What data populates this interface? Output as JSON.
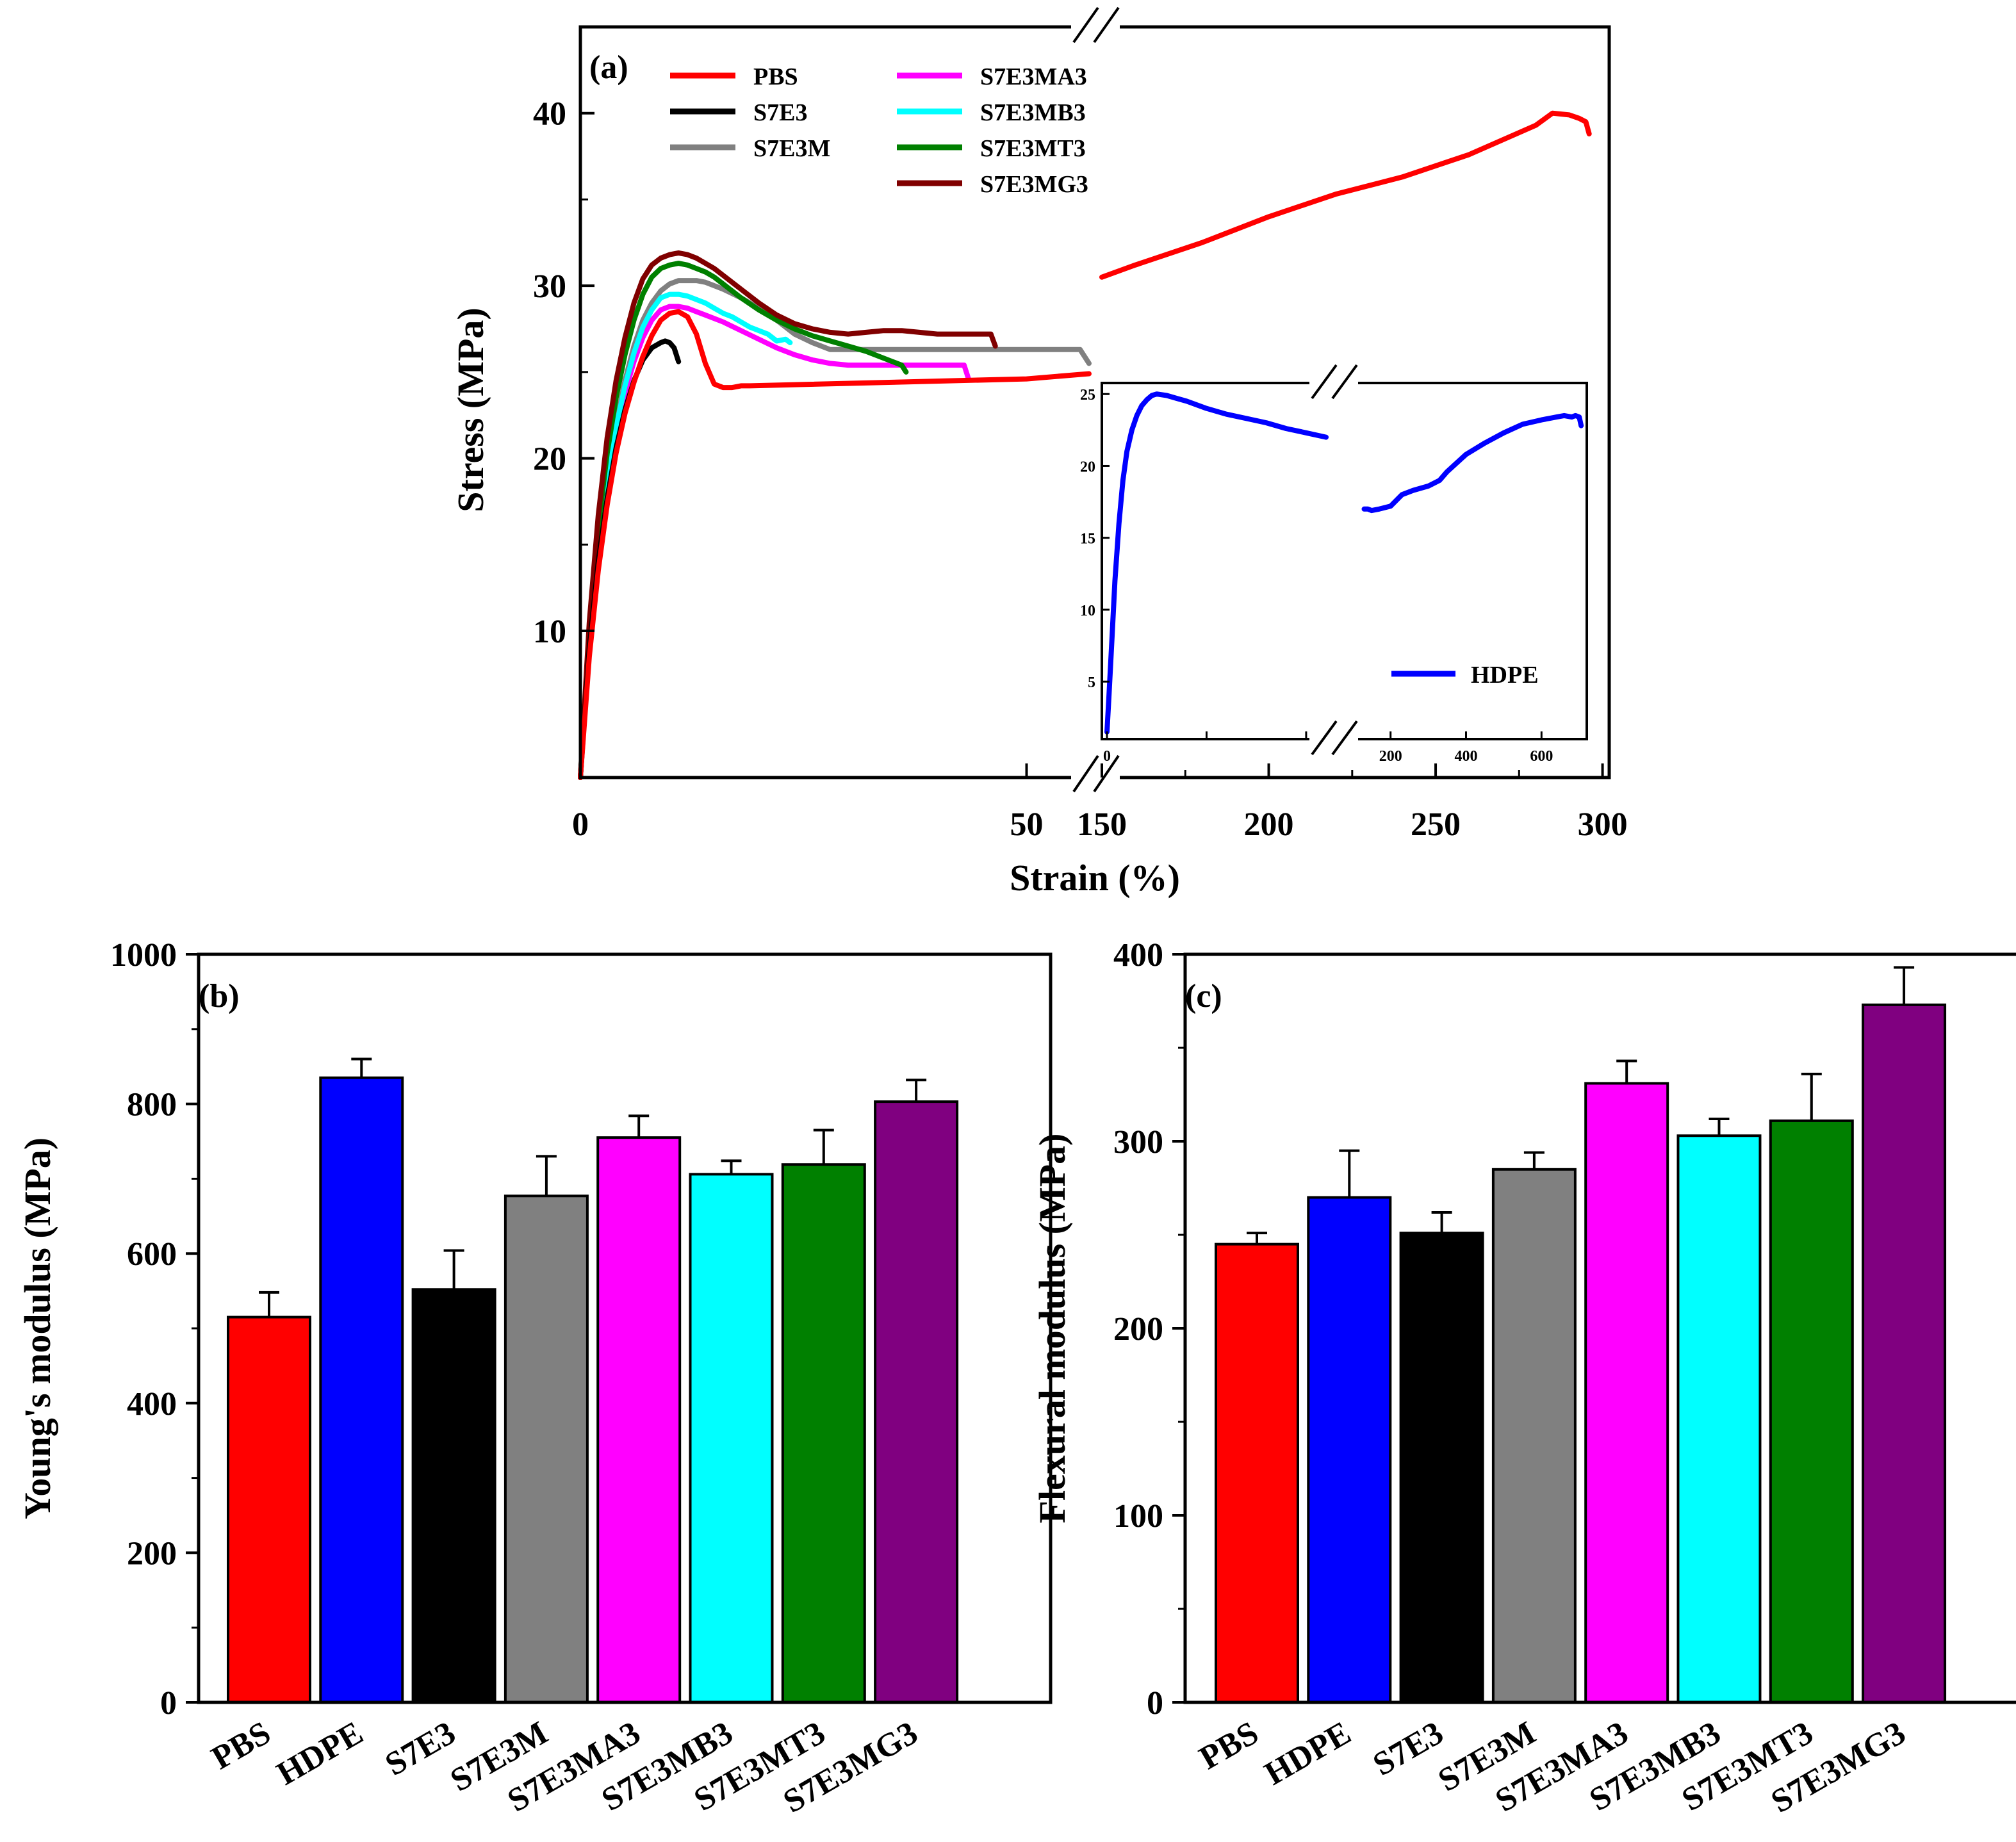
{
  "chart_data": [
    {
      "panel": "(a)",
      "type": "line",
      "xlabel": "Strain (%)",
      "ylabel": "Stress (MPa)",
      "x_break": [
        50,
        150
      ],
      "xlim": [
        0,
        300
      ],
      "ylim": [
        1.5,
        45
      ],
      "x_ticks": [
        0,
        50,
        150,
        200,
        250,
        300
      ],
      "y_ticks": [
        10,
        20,
        30,
        40
      ],
      "grid": false,
      "legend_position": "top",
      "series": [
        {
          "name": "PBS",
          "color": "#ff0000",
          "x": [
            0,
            1,
            2,
            3,
            4,
            5,
            6,
            7,
            8,
            9,
            10,
            11,
            12,
            13,
            14,
            15,
            16,
            17,
            18,
            19,
            50,
            57,
            150,
            160,
            180,
            200,
            220,
            240,
            260,
            280,
            285,
            290,
            293,
            295,
            296
          ],
          "y": [
            1.5,
            8.5,
            13.5,
            17.3,
            20.3,
            22.6,
            24.4,
            25.9,
            27.1,
            28.0,
            28.4,
            28.5,
            28.2,
            27.2,
            25.5,
            24.3,
            24.1,
            24.1,
            24.2,
            24.2,
            24.6,
            24.9,
            30.5,
            31.2,
            32.5,
            34.0,
            35.3,
            36.3,
            37.6,
            39.3,
            40.0,
            39.9,
            39.7,
            39.5,
            38.8
          ]
        },
        {
          "name": "S7E3",
          "color": "#000000",
          "x": [
            0,
            1,
            2,
            3,
            4,
            5,
            6,
            7,
            8,
            9,
            9.5,
            10,
            10.5,
            11
          ],
          "y": [
            1.5,
            9.0,
            14.0,
            17.7,
            20.6,
            22.8,
            24.5,
            25.7,
            26.4,
            26.7,
            26.8,
            26.7,
            26.4,
            25.6
          ]
        },
        {
          "name": "S7E3M",
          "color": "#808080",
          "x": [
            0,
            1,
            2,
            3,
            4,
            5,
            6,
            7,
            8,
            9,
            10,
            11,
            12,
            13,
            14,
            16,
            18,
            20,
            22,
            24,
            26,
            28,
            30,
            34,
            38,
            42,
            46,
            50,
            56,
            57
          ],
          "y": [
            1.5,
            9.5,
            15.0,
            19.0,
            22.0,
            24.5,
            26.5,
            28.0,
            29.0,
            29.7,
            30.1,
            30.3,
            30.3,
            30.3,
            30.2,
            29.8,
            29.3,
            28.7,
            28.0,
            27.2,
            26.7,
            26.3,
            26.3,
            26.3,
            26.3,
            26.3,
            26.3,
            26.3,
            26.3,
            25.5
          ]
        },
        {
          "name": "S7E3MA3",
          "color": "#ff00ff",
          "x": [
            0,
            1,
            2,
            3,
            4,
            5,
            6,
            7,
            8,
            9,
            10,
            11,
            12,
            13,
            14,
            16,
            18,
            20,
            22,
            24,
            26,
            28,
            30,
            33,
            36,
            40,
            42,
            43,
            43.5
          ],
          "y": [
            1.5,
            9.2,
            14.5,
            18.5,
            21.5,
            23.8,
            25.6,
            27.0,
            28.0,
            28.6,
            28.8,
            28.8,
            28.7,
            28.5,
            28.3,
            27.9,
            27.4,
            26.9,
            26.4,
            26.0,
            25.7,
            25.5,
            25.4,
            25.4,
            25.4,
            25.4,
            25.4,
            25.4,
            24.6
          ]
        },
        {
          "name": "S7E3MB3",
          "color": "#00ffff",
          "x": [
            0,
            1,
            2,
            3,
            4,
            5,
            6,
            7,
            8,
            9,
            10,
            11,
            12,
            13,
            14,
            15,
            16,
            17,
            18,
            19,
            20,
            21,
            22,
            23,
            23.5
          ],
          "y": [
            1.5,
            9.4,
            14.8,
            18.8,
            21.8,
            24.2,
            26.1,
            27.6,
            28.6,
            29.3,
            29.5,
            29.5,
            29.4,
            29.2,
            29.0,
            28.7,
            28.4,
            28.2,
            27.9,
            27.6,
            27.4,
            27.2,
            26.8,
            26.9,
            26.7
          ]
        },
        {
          "name": "S7E3MT3",
          "color": "#008000",
          "x": [
            0,
            1,
            2,
            3,
            4,
            5,
            6,
            7,
            8,
            9,
            10,
            11,
            12,
            13,
            14,
            15,
            16,
            18,
            20,
            22,
            24,
            26,
            28,
            30,
            32,
            34,
            35,
            36,
            36.5
          ],
          "y": [
            1.5,
            10.0,
            16.0,
            20.3,
            23.5,
            26.0,
            28.0,
            29.5,
            30.5,
            31.0,
            31.2,
            31.3,
            31.2,
            31.0,
            30.8,
            30.5,
            30.1,
            29.3,
            28.6,
            28.0,
            27.5,
            27.1,
            26.8,
            26.5,
            26.2,
            25.8,
            25.6,
            25.4,
            25.0
          ]
        },
        {
          "name": "S7E3MG3",
          "color": "#800000",
          "x": [
            0,
            1,
            2,
            3,
            4,
            5,
            6,
            7,
            8,
            9,
            10,
            11,
            12,
            13,
            14,
            15,
            16,
            18,
            20,
            22,
            24,
            26,
            28,
            30,
            32,
            34,
            36,
            38,
            40,
            42,
            44,
            45,
            46,
            46.5
          ],
          "y": [
            1.5,
            10.5,
            16.7,
            21.2,
            24.5,
            27.0,
            29.0,
            30.4,
            31.2,
            31.6,
            31.8,
            31.9,
            31.8,
            31.6,
            31.3,
            31.0,
            30.6,
            29.8,
            29.0,
            28.3,
            27.8,
            27.5,
            27.3,
            27.2,
            27.3,
            27.4,
            27.4,
            27.3,
            27.2,
            27.2,
            27.2,
            27.2,
            27.2,
            26.5
          ]
        }
      ],
      "inset": {
        "series_name": "HDPE",
        "color": "#0000ff",
        "xlim": [
          0,
          700
        ],
        "x_break": [
          220,
          130
        ],
        "ylim": [
          1,
          25.5
        ],
        "x_ticks": [
          0,
          200,
          400,
          600
        ],
        "y_ticks": [
          5,
          10,
          15,
          20,
          25
        ],
        "x": [
          0,
          2,
          5,
          8,
          12,
          16,
          20,
          25,
          30,
          35,
          40,
          45,
          50,
          60,
          70,
          80,
          100,
          120,
          140,
          160,
          180,
          200,
          220,
          130,
          140,
          150,
          170,
          200,
          230,
          260,
          300,
          330,
          350,
          400,
          450,
          500,
          550,
          600,
          640,
          660,
          680,
          690,
          700,
          705
        ],
        "y": [
          1.5,
          4.0,
          8.0,
          12.0,
          16.0,
          19.0,
          21.0,
          22.5,
          23.5,
          24.2,
          24.6,
          24.9,
          25.0,
          24.9,
          24.7,
          24.5,
          24.0,
          23.6,
          23.3,
          23.0,
          22.6,
          22.3,
          22.0,
          17.0,
          17.0,
          16.9,
          17.0,
          17.2,
          18.0,
          18.3,
          18.6,
          19.0,
          19.6,
          20.8,
          21.6,
          22.3,
          22.9,
          23.2,
          23.4,
          23.5,
          23.4,
          23.5,
          23.4,
          22.8
        ]
      }
    },
    {
      "panel": "(b)",
      "type": "bar",
      "ylabel": "Young's modulus (MPa)",
      "ylim": [
        0,
        1000
      ],
      "y_ticks": [
        0,
        200,
        400,
        600,
        800,
        1000
      ],
      "categories": [
        "PBS",
        "HDPE",
        "S7E3",
        "S7E3M",
        "S7E3MA3",
        "S7E3MB3",
        "S7E3MT3",
        "S7E3MG3"
      ],
      "colors": [
        "#ff0000",
        "#0000ff",
        "#000000",
        "#808080",
        "#ff00ff",
        "#00ffff",
        "#008000",
        "#800080"
      ],
      "values": [
        515,
        835,
        552,
        677,
        755,
        706,
        719,
        803
      ],
      "errors": [
        33,
        25,
        52,
        53,
        29,
        18,
        46,
        29
      ]
    },
    {
      "panel": "(c)",
      "type": "bar",
      "ylabel": "Flexural modulus (MPa)",
      "ylim": [
        0,
        400
      ],
      "y_ticks": [
        0,
        100,
        200,
        300,
        400
      ],
      "categories": [
        "PBS",
        "HDPE",
        "S7E3",
        "S7E3M",
        "S7E3MA3",
        "S7E3MB3",
        "S7E3MT3",
        "S7E3MG3"
      ],
      "colors": [
        "#ff0000",
        "#0000ff",
        "#000000",
        "#808080",
        "#ff00ff",
        "#00ffff",
        "#008000",
        "#800080"
      ],
      "values": [
        245,
        270,
        251,
        285,
        331,
        303,
        311,
        373
      ],
      "errors": [
        6,
        25,
        11,
        9,
        12,
        9,
        25,
        20
      ]
    }
  ]
}
